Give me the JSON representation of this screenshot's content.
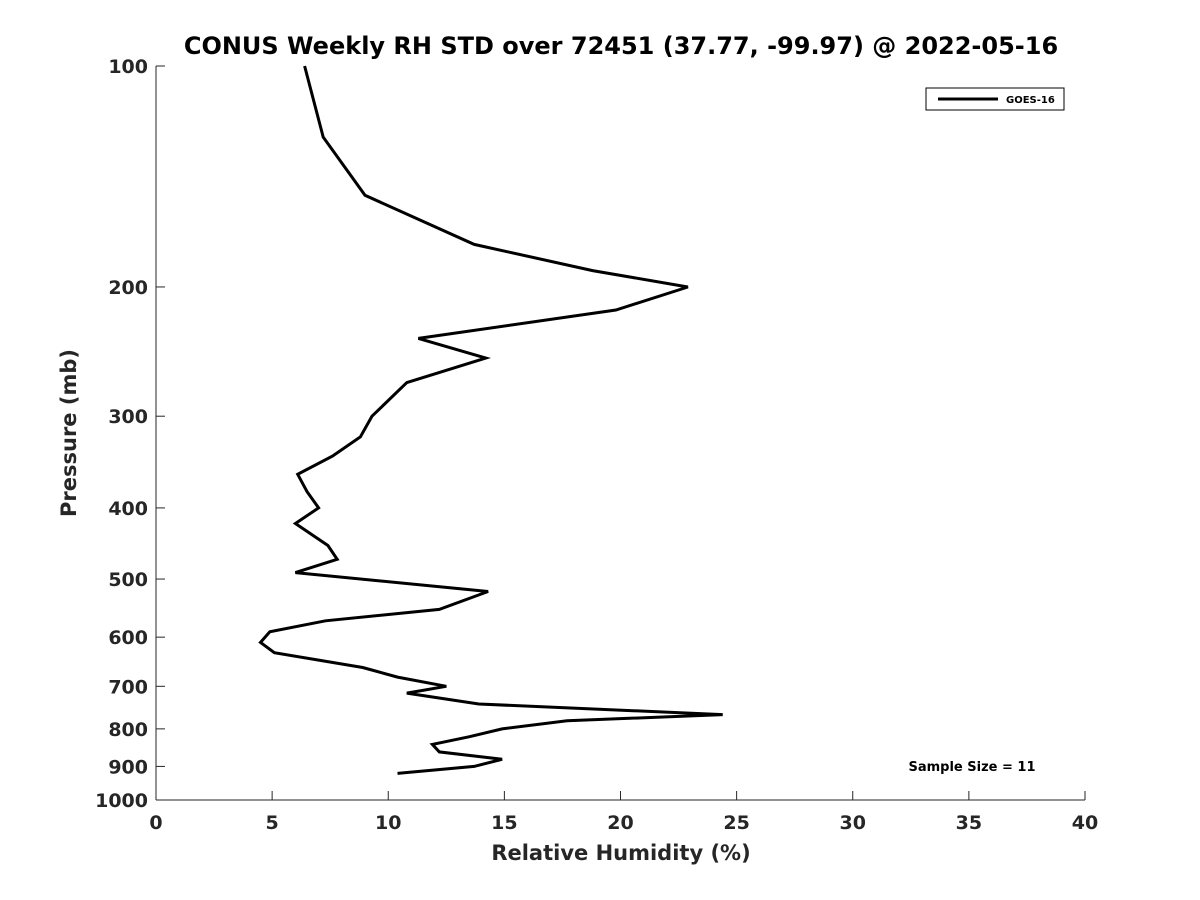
{
  "chart_data": {
    "type": "line",
    "title": "CONUS Weekly RH STD over 72451 (37.77, -99.97) @ 2022-05-16",
    "xlabel": "Relative Humidity (%)",
    "ylabel": "Pressure (mb)",
    "xlim": [
      0,
      40
    ],
    "ylim": [
      100,
      1000
    ],
    "y_scale": "log",
    "y_reversed": true,
    "x_ticks": [
      "0",
      "5",
      "10",
      "15",
      "20",
      "25",
      "30",
      "35",
      "40"
    ],
    "y_ticks": [
      "100",
      "200",
      "300",
      "400",
      "500",
      "600",
      "700",
      "800",
      "900",
      "1000"
    ],
    "grid": false,
    "legend_position": "top-right",
    "series": [
      {
        "name": "GOES-16",
        "color": "#000000",
        "points": [
          [
            6.4,
            100
          ],
          [
            7.2,
            125
          ],
          [
            9.0,
            150
          ],
          [
            13.7,
            175
          ],
          [
            18.8,
            190
          ],
          [
            22.9,
            200
          ],
          [
            19.8,
            215
          ],
          [
            11.3,
            235
          ],
          [
            14.2,
            250
          ],
          [
            10.8,
            270
          ],
          [
            9.3,
            300
          ],
          [
            8.8,
            320
          ],
          [
            7.6,
            340
          ],
          [
            6.1,
            360
          ],
          [
            6.5,
            380
          ],
          [
            7.0,
            400
          ],
          [
            6.0,
            420
          ],
          [
            7.4,
            450
          ],
          [
            7.8,
            470
          ],
          [
            6.0,
            490
          ],
          [
            14.3,
            520
          ],
          [
            12.2,
            550
          ],
          [
            7.3,
            570
          ],
          [
            4.9,
            590
          ],
          [
            4.5,
            610
          ],
          [
            5.1,
            630
          ],
          [
            8.9,
            660
          ],
          [
            10.4,
            680
          ],
          [
            12.5,
            700
          ],
          [
            10.8,
            715
          ],
          [
            13.9,
            740
          ],
          [
            24.4,
            765
          ],
          [
            17.7,
            780
          ],
          [
            14.9,
            800
          ],
          [
            13.5,
            820
          ],
          [
            11.9,
            840
          ],
          [
            12.2,
            860
          ],
          [
            14.9,
            880
          ],
          [
            13.7,
            900
          ],
          [
            10.4,
            920
          ]
        ]
      }
    ],
    "annotation": "Sample Size = 11"
  }
}
